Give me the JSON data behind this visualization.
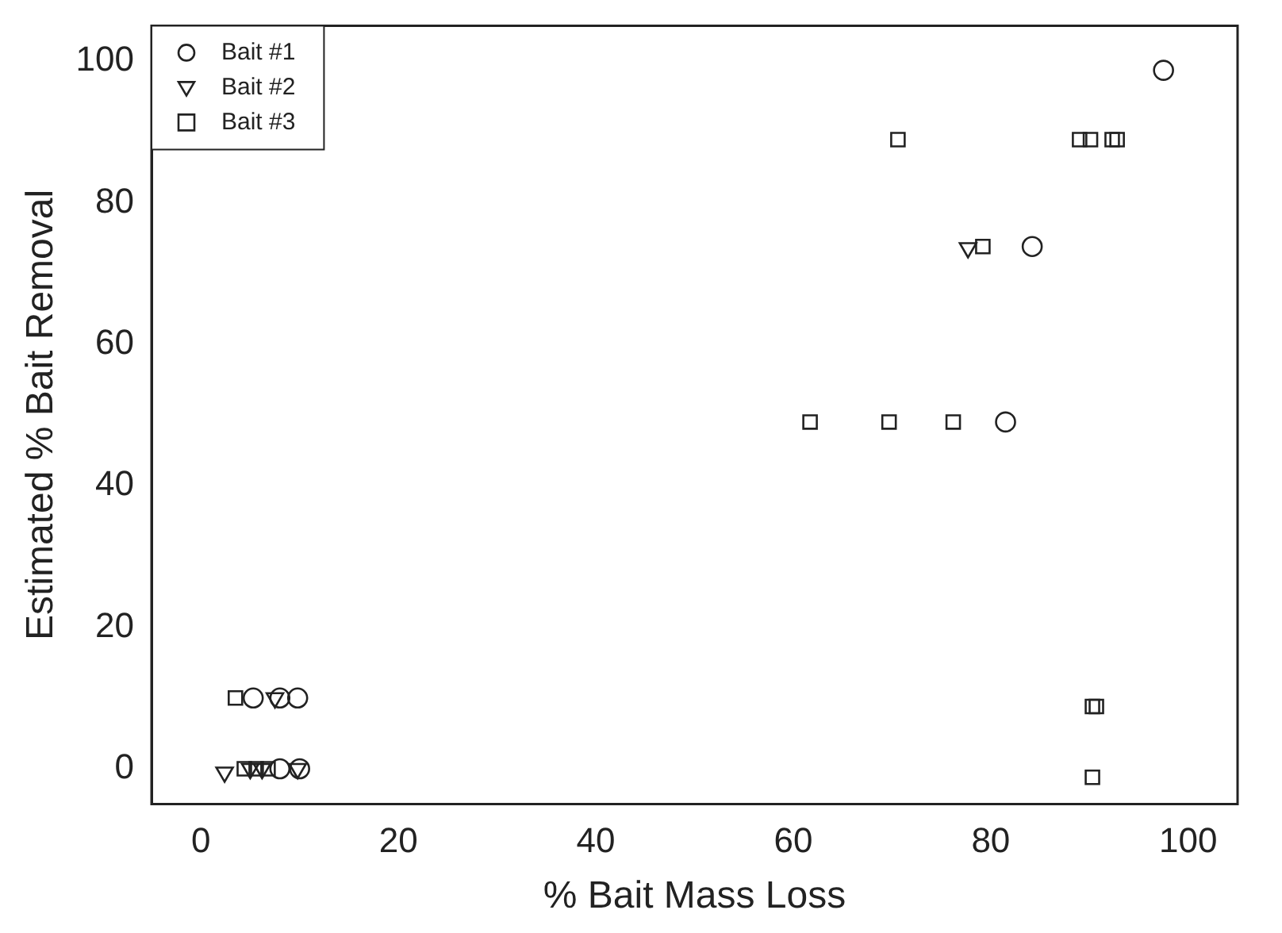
{
  "chart_data": {
    "type": "scatter",
    "xlabel": "% Bait Mass Loss",
    "ylabel": "Estimated % Bait Removal",
    "xlim": [
      -5,
      105
    ],
    "ylim": [
      -5,
      105
    ],
    "xticks": [
      0,
      20,
      40,
      60,
      80,
      100
    ],
    "yticks": [
      0,
      20,
      40,
      60,
      80,
      100
    ],
    "grid": false,
    "legend": "top left",
    "series": [
      {
        "name": "Bait #1",
        "color": "#222222",
        "marker": "circle",
        "x": [
          97.5,
          84.2,
          81.5,
          5.3,
          8,
          9.8,
          8,
          10
        ],
        "values": [
          98.7,
          73.8,
          49,
          10,
          10,
          10,
          0,
          0
        ]
      },
      {
        "name": "Bait #2",
        "color": "#222222",
        "marker": "triangle",
        "x": [
          77.7,
          2.4,
          7.5,
          5,
          6.2,
          9.8
        ],
        "values": [
          73.6,
          -0.5,
          10,
          0,
          0,
          0
        ]
      },
      {
        "name": "Bait #3",
        "color": "#222222",
        "marker": "square",
        "x": [
          70.6,
          89,
          90.1,
          92.3,
          92.8,
          79.2,
          61.7,
          69.7,
          76.2,
          90.3,
          90.7,
          90.3,
          3.5,
          4.4,
          5.6,
          6.8
        ],
        "values": [
          88.9,
          88.9,
          88.9,
          88.9,
          88.9,
          73.8,
          49,
          49,
          49,
          8.8,
          8.8,
          -1.2,
          10,
          0,
          0,
          0
        ]
      }
    ]
  }
}
